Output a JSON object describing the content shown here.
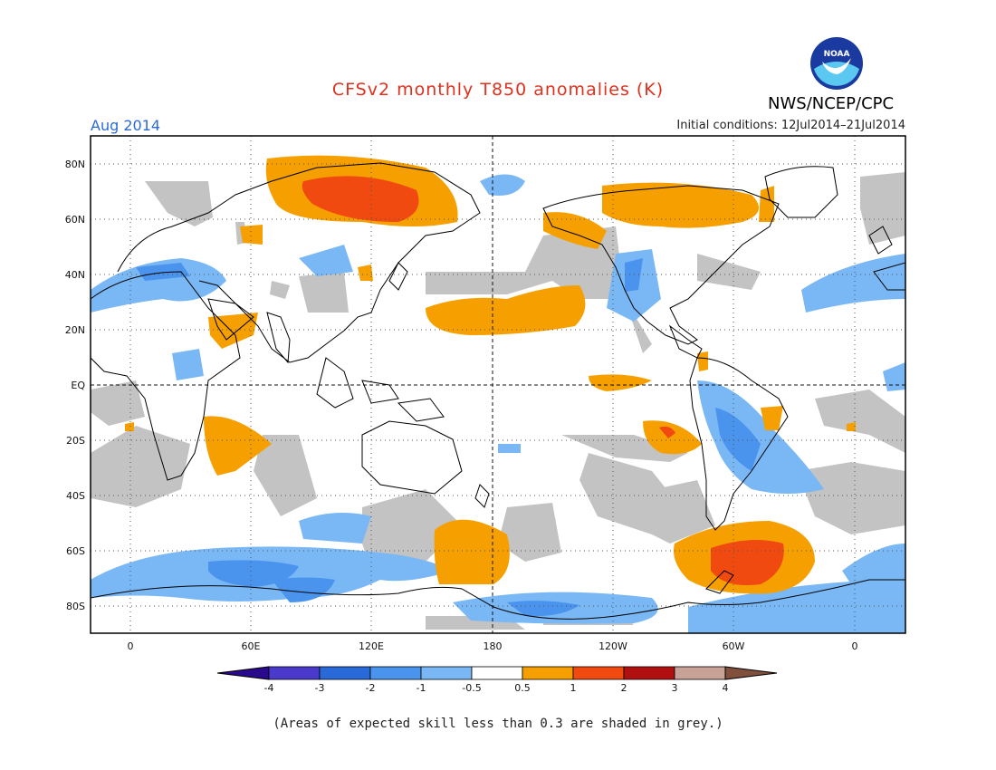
{
  "header": {
    "title": "CFSv2 monthly T850 anomalies (K)",
    "agency": "NWS/NCEP/CPC",
    "logo_text": "NOAA",
    "month": "Aug 2014",
    "initial_conditions": "Initial conditions: 12Jul2014–21Jul2014"
  },
  "map": {
    "projection": "equirectangular",
    "lat_labels": [
      "80N",
      "60N",
      "40N",
      "20N",
      "EQ",
      "20S",
      "40S",
      "60S",
      "80S"
    ],
    "lon_labels": [
      "0",
      "60E",
      "120E",
      "180",
      "120W",
      "60W",
      "0"
    ],
    "grid": "dotted",
    "reference_lines": [
      "equator",
      "dateline"
    ]
  },
  "legend": {
    "labels": [
      "-4",
      "-3",
      "-2",
      "-1",
      "-0.5",
      "0.5",
      "1",
      "2",
      "3",
      "4"
    ],
    "colors": [
      "#2a0a8c",
      "#4a3acc",
      "#2a6ad8",
      "#4a94ee",
      "#7ab8f5",
      "#ffffff",
      "#f5a000",
      "#f04a10",
      "#b01010",
      "#c8a296",
      "#80503c"
    ]
  },
  "colors": {
    "grey_shade": "#c0c0c0",
    "title": "#e0301e",
    "month": "#2a6ad8"
  },
  "footnote": "(Areas of expected skill less than 0.3 are shaded in grey.)"
}
